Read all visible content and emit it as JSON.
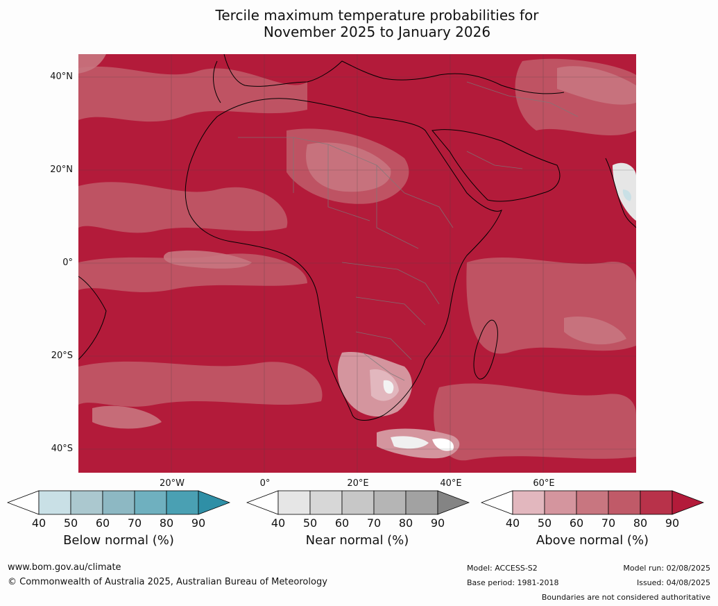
{
  "title_line1": "Tercile maximum temperature probabilities for",
  "title_line2": "November 2025 to January 2026",
  "axes": {
    "lat_labels": [
      "40°N",
      "20°N",
      "0°",
      "20°S",
      "40°S"
    ],
    "lon_labels": [
      "20°W",
      "0°",
      "20°E",
      "40°E",
      "60°E"
    ]
  },
  "colorbars": [
    {
      "label": "Below normal (%)",
      "ticks": [
        "40",
        "50",
        "60",
        "70",
        "80",
        "90"
      ],
      "colors": [
        "#ffffff",
        "#c9e0e6",
        "#abc8cf",
        "#8db8c3",
        "#6fb0bf",
        "#4aa0b3",
        "#2f8fa6"
      ]
    },
    {
      "label": "Near normal (%)",
      "ticks": [
        "40",
        "50",
        "60",
        "70",
        "80",
        "90"
      ],
      "colors": [
        "#ffffff",
        "#e6e6e6",
        "#d7d7d7",
        "#c7c7c7",
        "#b5b5b5",
        "#a2a2a2",
        "#848484"
      ]
    },
    {
      "label": "Above normal (%)",
      "ticks": [
        "40",
        "50",
        "60",
        "70",
        "80",
        "90"
      ],
      "colors": [
        "#ffffff",
        "#e2b7be",
        "#d4959e",
        "#c87680",
        "#c05a68",
        "#b8324a",
        "#b31b3a"
      ]
    }
  ],
  "footer": {
    "website": "www.bom.gov.au/climate",
    "copyright": "© Commonwealth of Australia 2025, Australian Bureau of Meteorology",
    "model": "Model: ACCESS-S2",
    "base_period": "Base period: 1981-2018",
    "model_run": "Model run: 02/08/2025",
    "issued": "Issued: 04/08/2025",
    "boundaries_note": "Boundaries are not considered authoritative"
  },
  "map": {
    "dominant_category": "Above normal",
    "ocean_color": "#b31b3a"
  }
}
